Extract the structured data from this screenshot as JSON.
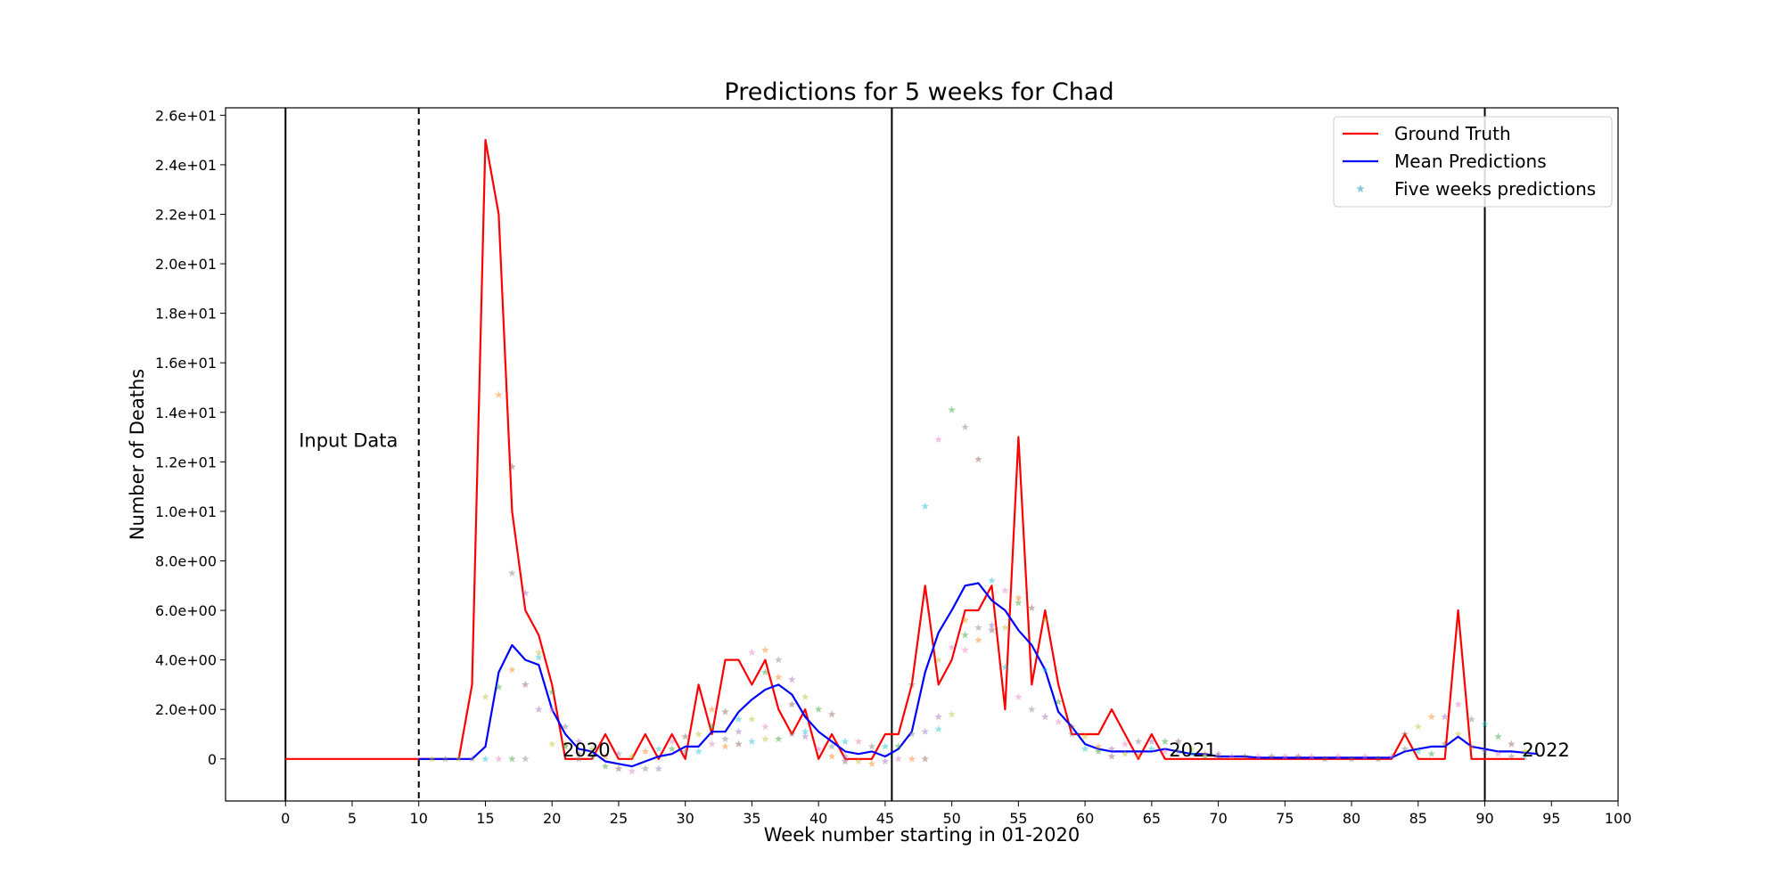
{
  "chart_data": {
    "type": "line",
    "title": "Predictions for 5 weeks for Chad",
    "xlabel": "Week number starting in 01-2020",
    "ylabel": "Number of Deaths",
    "xlim": [
      -4.5,
      100
    ],
    "ylim": [
      -1.7,
      26.3
    ],
    "xticks": [
      0,
      5,
      10,
      15,
      20,
      25,
      30,
      35,
      40,
      45,
      50,
      55,
      60,
      65,
      70,
      75,
      80,
      85,
      90,
      95,
      100
    ],
    "yticks": [
      0,
      2,
      4,
      6,
      8,
      10,
      12,
      14,
      16,
      18,
      20,
      22,
      24,
      26
    ],
    "ytick_labels": [
      "0",
      "2.0e+00",
      "4.0e+00",
      "6.0e+00",
      "8.0e+00",
      "1.0e+01",
      "1.2e+01",
      "1.4e+01",
      "1.6e+01",
      "1.8e+01",
      "2.0e+01",
      "2.2e+01",
      "2.4e+01",
      "2.6e+01"
    ],
    "legend_position": "top-right",
    "legend": [
      {
        "label": "Ground Truth",
        "kind": "line",
        "color": "#ff0000"
      },
      {
        "label": "Mean Predictions",
        "kind": "line",
        "color": "#0000ff"
      },
      {
        "label": "Five weeks predictions",
        "kind": "star",
        "color": "#6fb6d8"
      }
    ],
    "vlines": [
      {
        "x": 0,
        "style": "solid"
      },
      {
        "x": 10,
        "style": "dashed"
      },
      {
        "x": 45.5,
        "style": "solid"
      },
      {
        "x": 90,
        "style": "solid"
      }
    ],
    "annotations": [
      {
        "text": "Input Data",
        "x": 1,
        "y": 12.6
      },
      {
        "text": "2020",
        "x": 20.8,
        "y": 0.1
      },
      {
        "text": "2021",
        "x": 66.3,
        "y": 0.1
      },
      {
        "text": "2022",
        "x": 92.8,
        "y": 0.1
      }
    ],
    "series": [
      {
        "name": "Ground Truth",
        "color": "#ff0000",
        "x": [
          0,
          1,
          2,
          3,
          4,
          5,
          6,
          7,
          8,
          9,
          10,
          11,
          12,
          13,
          14,
          15,
          16,
          17,
          18,
          19,
          20,
          21,
          22,
          23,
          24,
          25,
          26,
          27,
          28,
          29,
          30,
          31,
          32,
          33,
          34,
          35,
          36,
          37,
          38,
          39,
          40,
          41,
          42,
          43,
          44,
          45,
          46,
          47,
          48,
          49,
          50,
          51,
          52,
          53,
          54,
          55,
          56,
          57,
          58,
          59,
          60,
          61,
          62,
          63,
          64,
          65,
          66,
          67,
          68,
          69,
          70,
          71,
          72,
          73,
          74,
          75,
          76,
          77,
          78,
          79,
          80,
          81,
          82,
          83,
          84,
          85,
          86,
          87,
          88,
          89,
          90,
          91,
          92,
          93
        ],
        "values": [
          0,
          0,
          0,
          0,
          0,
          0,
          0,
          0,
          0,
          0,
          0,
          0,
          0,
          0,
          3,
          25,
          22,
          10,
          6,
          5,
          3,
          0,
          0,
          0,
          1,
          0,
          0,
          1,
          0,
          1,
          0,
          3,
          1,
          4,
          4,
          3,
          4,
          2,
          1,
          2,
          0,
          1,
          0,
          0,
          0,
          1,
          1,
          3,
          7,
          3,
          4,
          6,
          6,
          7,
          2,
          13,
          3,
          6,
          3,
          1,
          1,
          1,
          2,
          1,
          0,
          1,
          0,
          0,
          0,
          0,
          0,
          0,
          0,
          0,
          0,
          0,
          0,
          0,
          0,
          0,
          0,
          0,
          0,
          0,
          1,
          0,
          0,
          0,
          6,
          0,
          0,
          0,
          0,
          0
        ]
      },
      {
        "name": "Mean Predictions",
        "color": "#0000ff",
        "x": [
          10,
          11,
          12,
          13,
          14,
          15,
          16,
          17,
          18,
          19,
          20,
          21,
          22,
          23,
          24,
          25,
          26,
          27,
          28,
          29,
          30,
          31,
          32,
          33,
          34,
          35,
          36,
          37,
          38,
          39,
          40,
          41,
          42,
          43,
          44,
          45,
          46,
          47,
          48,
          49,
          50,
          51,
          52,
          53,
          54,
          55,
          56,
          57,
          58,
          59,
          60,
          61,
          62,
          63,
          64,
          65,
          66,
          67,
          68,
          69,
          70,
          71,
          72,
          73,
          74,
          75,
          76,
          77,
          78,
          79,
          80,
          81,
          82,
          83,
          84,
          85,
          86,
          87,
          88,
          89,
          90,
          91,
          92,
          93,
          94
        ],
        "values": [
          0,
          0,
          0,
          0,
          0,
          0.5,
          3.5,
          4.6,
          4,
          3.8,
          2,
          1,
          0.4,
          0.3,
          -0.1,
          -0.2,
          -0.3,
          -0.1,
          0.1,
          0.2,
          0.5,
          0.5,
          1.1,
          1.1,
          1.9,
          2.4,
          2.8,
          3,
          2.6,
          1.7,
          1.1,
          0.7,
          0.3,
          0.2,
          0.3,
          0.1,
          0.4,
          1.1,
          3.5,
          5.1,
          6,
          7,
          7.1,
          6.4,
          6,
          5.2,
          4.6,
          3.6,
          1.9,
          1.3,
          0.6,
          0.4,
          0.3,
          0.3,
          0.3,
          0.3,
          0.4,
          0.3,
          0.2,
          0.2,
          0.1,
          0.1,
          0.1,
          0.05,
          0.05,
          0.05,
          0.05,
          0.05,
          0.05,
          0.05,
          0.05,
          0.05,
          0.05,
          0.05,
          0.3,
          0.4,
          0.5,
          0.5,
          0.9,
          0.5,
          0.4,
          0.3,
          0.3,
          0.25,
          0.2
        ]
      },
      {
        "name": "Five weeks predictions",
        "kind": "scatter",
        "colors": [
          "#e377c2",
          "#bcbd22",
          "#17becf",
          "#9467bd",
          "#8c564b",
          "#7f7f7f",
          "#ff7f0e",
          "#2ca02c"
        ],
        "points": [
          [
            11,
            0
          ],
          [
            12,
            0
          ],
          [
            13,
            0
          ],
          [
            14,
            0
          ],
          [
            15,
            2.5
          ],
          [
            15,
            0
          ],
          [
            16,
            14.7
          ],
          [
            16,
            2.9
          ],
          [
            16,
            0
          ],
          [
            17,
            11.8
          ],
          [
            17,
            7.5
          ],
          [
            17,
            3.6
          ],
          [
            17,
            0
          ],
          [
            18,
            6.7
          ],
          [
            18,
            3
          ],
          [
            18,
            0
          ],
          [
            19,
            4.3
          ],
          [
            19,
            4.1
          ],
          [
            19,
            2
          ],
          [
            20,
            2.7
          ],
          [
            20,
            2
          ],
          [
            20,
            0.6
          ],
          [
            21,
            1.3
          ],
          [
            21,
            0.6
          ],
          [
            21,
            0.5
          ],
          [
            22,
            0.7
          ],
          [
            22,
            0.2
          ],
          [
            22,
            0
          ],
          [
            23,
            0.4
          ],
          [
            23,
            0.1
          ],
          [
            24,
            0.1
          ],
          [
            24,
            -0.3
          ],
          [
            25,
            0.2
          ],
          [
            25,
            -0.4
          ],
          [
            26,
            -0.5
          ],
          [
            26,
            0.1
          ],
          [
            27,
            -0.4
          ],
          [
            27,
            0.3
          ],
          [
            28,
            0.4
          ],
          [
            28,
            -0.4
          ],
          [
            29,
            0.4
          ],
          [
            29,
            0.7
          ],
          [
            30,
            0.9
          ],
          [
            30,
            0.3
          ],
          [
            31,
            1
          ],
          [
            31,
            0.3
          ],
          [
            32,
            2
          ],
          [
            32,
            1.3
          ],
          [
            32,
            0.6
          ],
          [
            33,
            1.9
          ],
          [
            33,
            0.8
          ],
          [
            33,
            0.5
          ],
          [
            34,
            1.6
          ],
          [
            34,
            1.1
          ],
          [
            34,
            0.6
          ],
          [
            35,
            4.3
          ],
          [
            35,
            1.6
          ],
          [
            35,
            0.7
          ],
          [
            36,
            4.4
          ],
          [
            36,
            3.5
          ],
          [
            36,
            1.3
          ],
          [
            36,
            0.8
          ],
          [
            37,
            4
          ],
          [
            37,
            3.3
          ],
          [
            37,
            0.8
          ],
          [
            38,
            3.2
          ],
          [
            38,
            2.2
          ],
          [
            38,
            1
          ],
          [
            39,
            2.5
          ],
          [
            39,
            1.1
          ],
          [
            39,
            0.9
          ],
          [
            40,
            2
          ],
          [
            40,
            0.4
          ],
          [
            41,
            1.8
          ],
          [
            41,
            0.5
          ],
          [
            41,
            0.1
          ],
          [
            42,
            0.7
          ],
          [
            42,
            0.1
          ],
          [
            42,
            -0.1
          ],
          [
            43,
            0.7
          ],
          [
            43,
            -0.1
          ],
          [
            44,
            0.5
          ],
          [
            44,
            -0.2
          ],
          [
            45,
            0.5
          ],
          [
            45,
            -0.1
          ],
          [
            46,
            0.5
          ],
          [
            46,
            0
          ],
          [
            47,
            3
          ],
          [
            47,
            1
          ],
          [
            47,
            0
          ],
          [
            48,
            10.2
          ],
          [
            48,
            1.1
          ],
          [
            48,
            0
          ],
          [
            49,
            12.9
          ],
          [
            49,
            4
          ],
          [
            49,
            1.2
          ],
          [
            49,
            1.7
          ],
          [
            50,
            14.1
          ],
          [
            50,
            4.5
          ],
          [
            50,
            1.8
          ],
          [
            51,
            13.4
          ],
          [
            51,
            5.6
          ],
          [
            51,
            5
          ],
          [
            51,
            4.4
          ],
          [
            52,
            12.1
          ],
          [
            52,
            5.3
          ],
          [
            52,
            4.8
          ],
          [
            53,
            7.2
          ],
          [
            53,
            5.4
          ],
          [
            53,
            5.2
          ],
          [
            54,
            6.8
          ],
          [
            54,
            5.3
          ],
          [
            54,
            3.7
          ],
          [
            55,
            6.5
          ],
          [
            55,
            6.3
          ],
          [
            55,
            2.5
          ],
          [
            56,
            6.1
          ],
          [
            56,
            2
          ],
          [
            57,
            5.6
          ],
          [
            57,
            3.6
          ],
          [
            57,
            1.7
          ],
          [
            58,
            2.3
          ],
          [
            58,
            1.5
          ],
          [
            59,
            1.3
          ],
          [
            59,
            1
          ],
          [
            60,
            0.9
          ],
          [
            60,
            0.4
          ],
          [
            61,
            0.5
          ],
          [
            61,
            0.3
          ],
          [
            62,
            0.4
          ],
          [
            62,
            0.1
          ],
          [
            63,
            0.6
          ],
          [
            63,
            0.2
          ],
          [
            64,
            0.7
          ],
          [
            64,
            0.1
          ],
          [
            65,
            0.4
          ],
          [
            65,
            0.7
          ],
          [
            66,
            0.7
          ],
          [
            66,
            0.3
          ],
          [
            67,
            0.7
          ],
          [
            67,
            0.3
          ],
          [
            68,
            0.4
          ],
          [
            68,
            0.2
          ],
          [
            69,
            0.2
          ],
          [
            69,
            0.1
          ],
          [
            70,
            0.2
          ],
          [
            70,
            0.1
          ],
          [
            71,
            0.1
          ],
          [
            72,
            0.1
          ],
          [
            73,
            0.1
          ],
          [
            74,
            0.1
          ],
          [
            75,
            0.1
          ],
          [
            76,
            0.1
          ],
          [
            77,
            0.1
          ],
          [
            78,
            0
          ],
          [
            79,
            0.1
          ],
          [
            80,
            0
          ],
          [
            81,
            0.1
          ],
          [
            82,
            0
          ],
          [
            83,
            0.1
          ],
          [
            84,
            1
          ],
          [
            84,
            0.4
          ],
          [
            85,
            1.3
          ],
          [
            85,
            0.3
          ],
          [
            86,
            1.7
          ],
          [
            86,
            0.2
          ],
          [
            87,
            1.7
          ],
          [
            87,
            0.6
          ],
          [
            88,
            2.2
          ],
          [
            88,
            1
          ],
          [
            89,
            1.6
          ],
          [
            89,
            0.5
          ],
          [
            90,
            1.4
          ],
          [
            90,
            0.3
          ],
          [
            91,
            0.9
          ],
          [
            91,
            0.2
          ],
          [
            92,
            0.6
          ],
          [
            92,
            0.1
          ],
          [
            93,
            0.3
          ],
          [
            93,
            0.1
          ]
        ]
      }
    ]
  }
}
